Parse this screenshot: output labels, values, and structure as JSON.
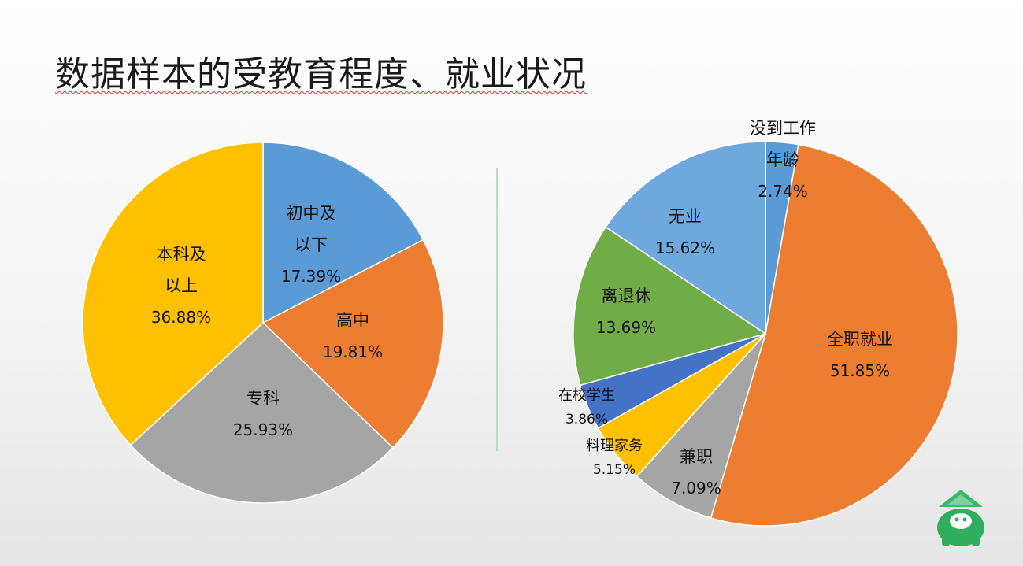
{
  "title": "数据样本的受教育程度、就业状况",
  "chart_data": [
    {
      "type": "pie",
      "title": "受教育程度",
      "slices": [
        {
          "name": "初中及以下",
          "label_lines": [
            "初中及",
            "以下"
          ],
          "value": 17.39,
          "value_label": "17.39%",
          "color": "#5b9bd5"
        },
        {
          "name": "高中",
          "label_lines": [
            "高中"
          ],
          "value": 19.81,
          "value_label": "19.81%",
          "color": "#ed7d31"
        },
        {
          "name": "专科",
          "label_lines": [
            "专科"
          ],
          "value": 25.93,
          "value_label": "25.93%",
          "color": "#a5a5a5"
        },
        {
          "name": "本科及以上",
          "label_lines": [
            "本科及",
            "以上"
          ],
          "value": 36.88,
          "value_label": "36.88%",
          "color": "#ffc000"
        }
      ]
    },
    {
      "type": "pie",
      "title": "就业状况",
      "slices": [
        {
          "name": "没到工作年龄",
          "label_lines": [
            "没到工作",
            "年龄"
          ],
          "value": 2.74,
          "value_label": "2.74%",
          "color": "#5b9bd5"
        },
        {
          "name": "全职就业",
          "label_lines": [
            "全职就业"
          ],
          "value": 51.85,
          "value_label": "51.85%",
          "color": "#ed7d31"
        },
        {
          "name": "兼职",
          "label_lines": [
            "兼职"
          ],
          "value": 7.09,
          "value_label": "7.09%",
          "color": "#a5a5a5"
        },
        {
          "name": "料理家务",
          "label_lines": [
            "料理家务"
          ],
          "value": 5.15,
          "value_label": "5.15%",
          "color": "#ffc000"
        },
        {
          "name": "在校学生",
          "label_lines": [
            "在校学生"
          ],
          "value": 3.86,
          "value_label": "3.86%",
          "color": "#4472c4"
        },
        {
          "name": "离退休",
          "label_lines": [
            "离退休"
          ],
          "value": 13.69,
          "value_label": "13.69%",
          "color": "#70ad47"
        },
        {
          "name": "无业",
          "label_lines": [
            "无业"
          ],
          "value": 15.62,
          "value_label": "15.62%",
          "color": "#6fa8dc"
        }
      ]
    }
  ]
}
